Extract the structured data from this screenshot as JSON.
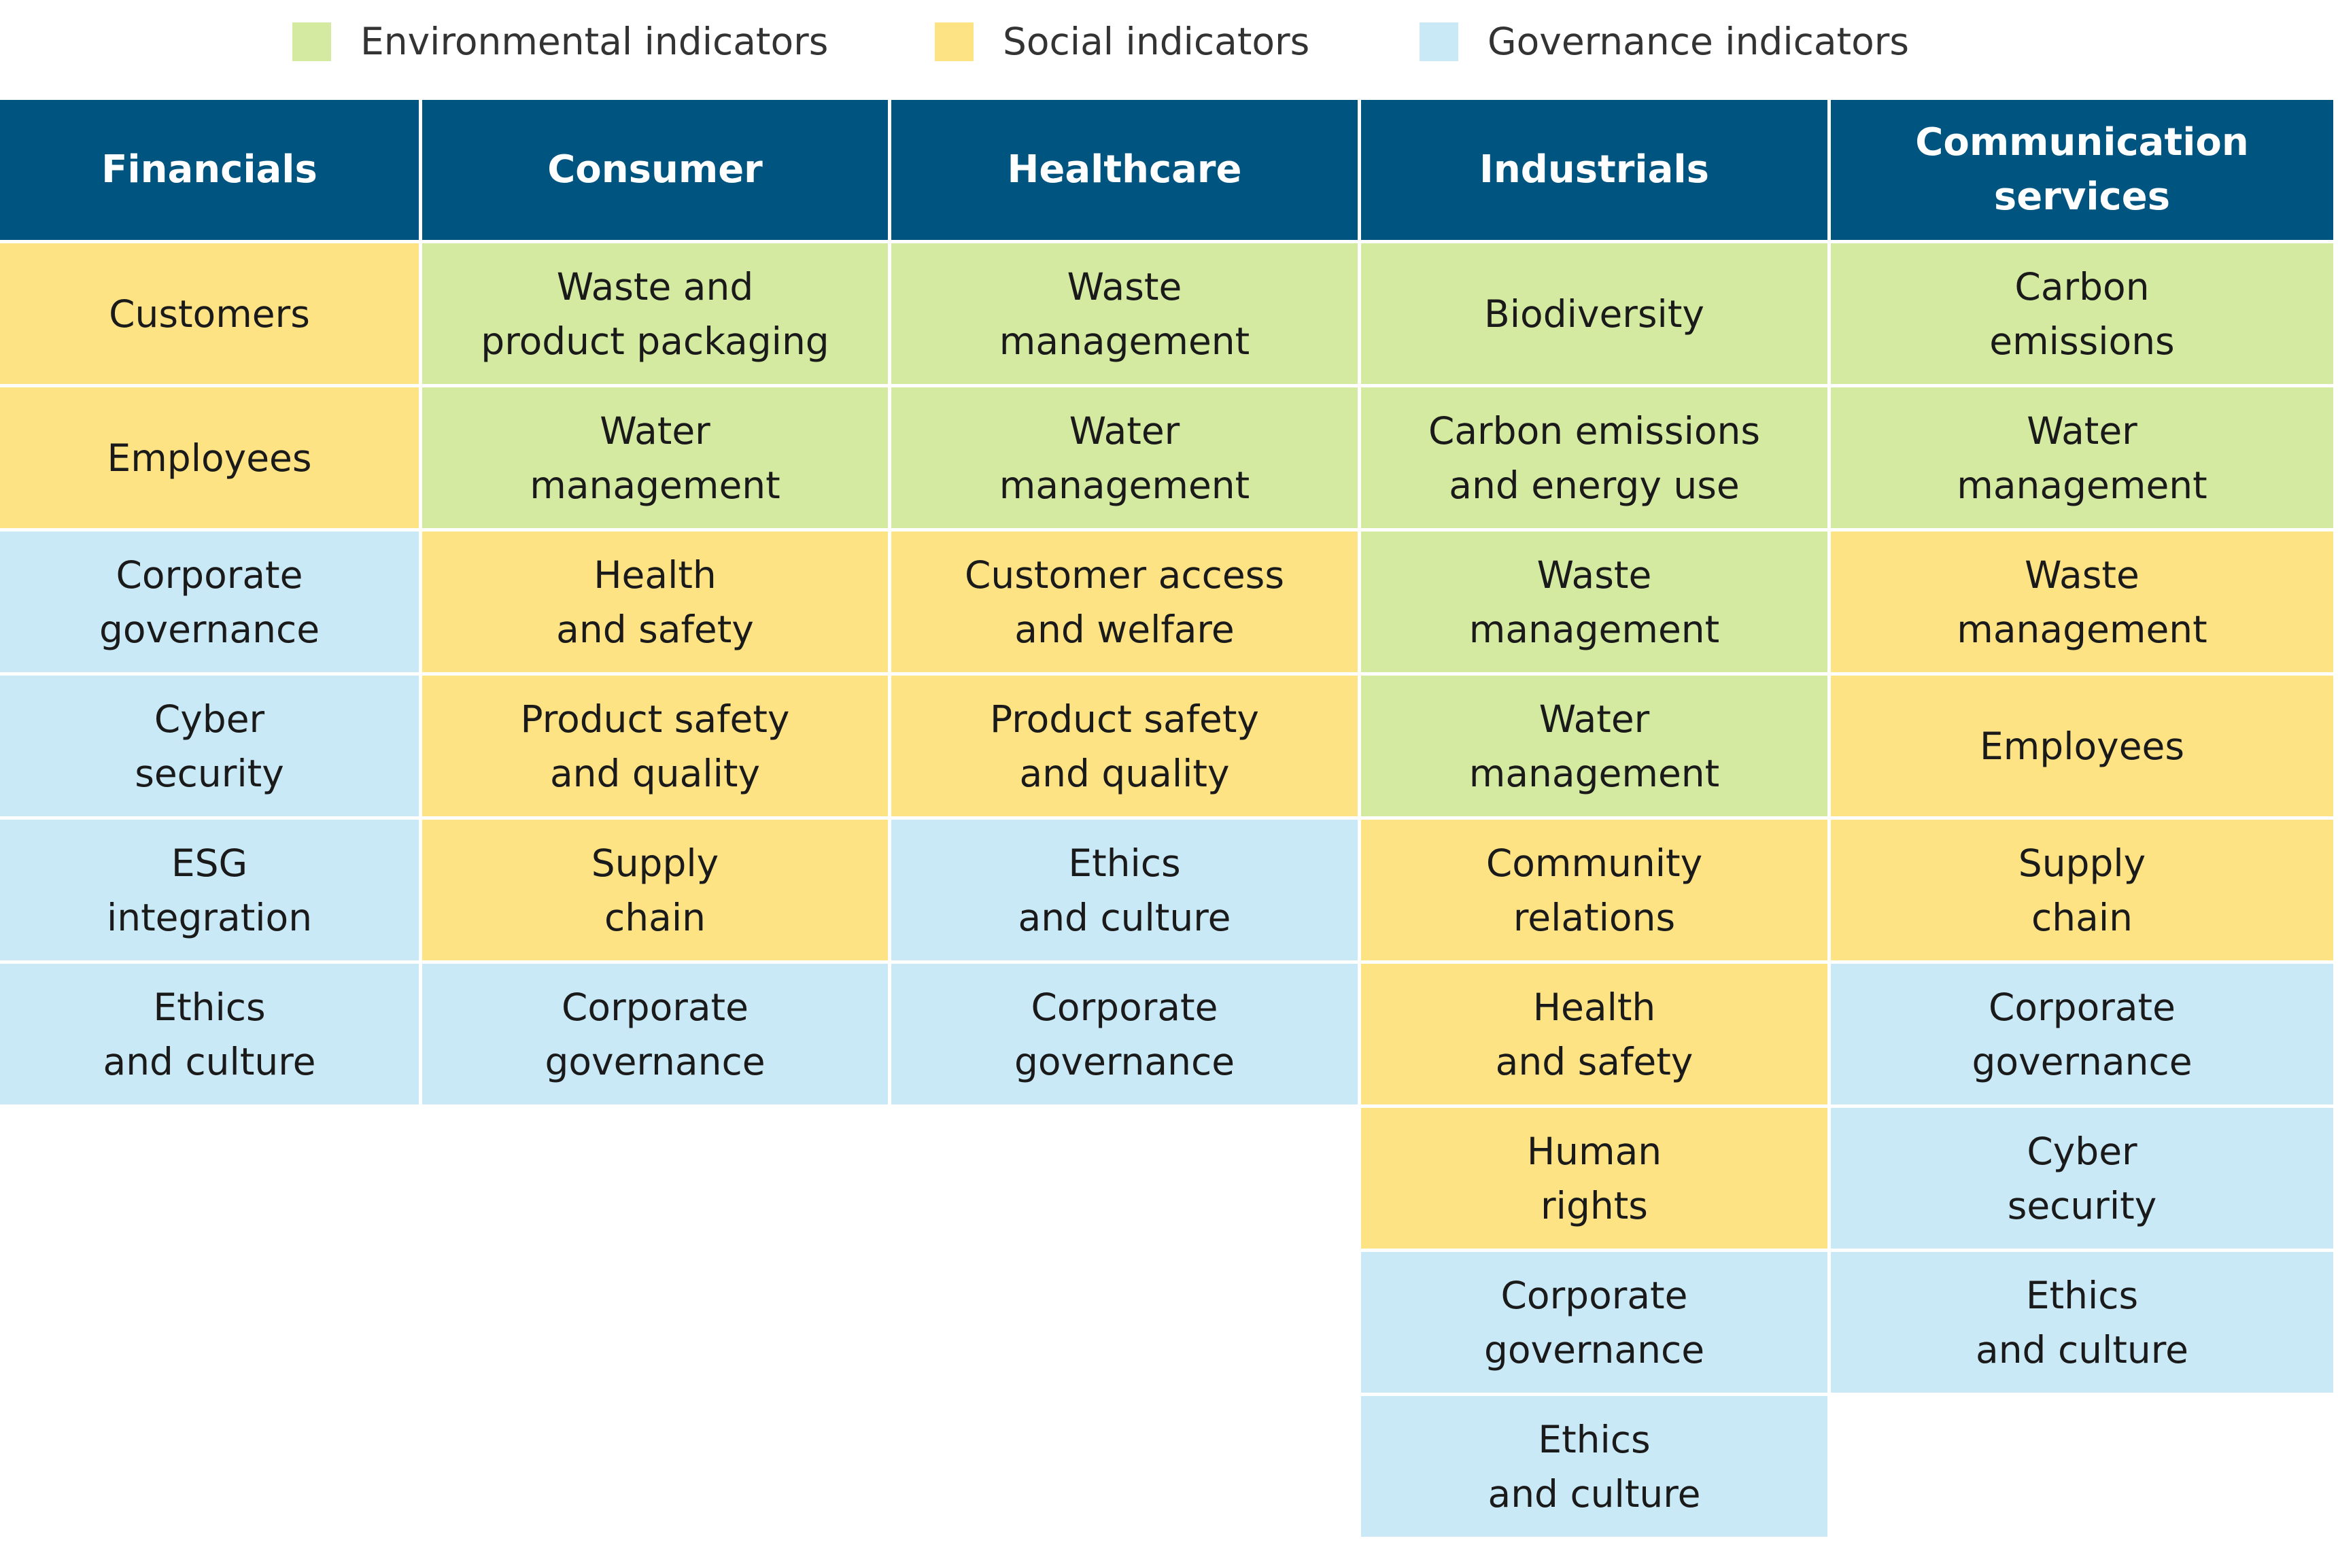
{
  "legend": [
    {
      "label": "Environmental indicators",
      "color": "#d4eaa0"
    },
    {
      "label": "Social indicators",
      "color": "#fde384"
    },
    {
      "label": "Governance indicators",
      "color": "#c9e9f6"
    }
  ],
  "header_color": "#005580",
  "columns": [
    {
      "header": "Financials",
      "cells": [
        {
          "text": "Customers",
          "color": "#fde384"
        },
        {
          "text": "Employees",
          "color": "#fde384"
        },
        {
          "text": "Corporate\ngovernance",
          "color": "#c9e9f6"
        },
        {
          "text": "Cyber\nsecurity",
          "color": "#c9e9f6"
        },
        {
          "text": "ESG\nintegration",
          "color": "#c9e9f6"
        },
        {
          "text": "Ethics\nand culture",
          "color": "#c9e9f6"
        }
      ]
    },
    {
      "header": "Consumer",
      "cells": [
        {
          "text": "Waste and\nproduct packaging",
          "color": "#d4eaa0"
        },
        {
          "text": "Water\nmanagement",
          "color": "#d4eaa0"
        },
        {
          "text": "Health\nand safety",
          "color": "#fde384"
        },
        {
          "text": "Product safety\nand quality",
          "color": "#fde384"
        },
        {
          "text": "Supply\nchain",
          "color": "#fde384"
        },
        {
          "text": "Corporate\ngovernance",
          "color": "#c9e9f6"
        }
      ]
    },
    {
      "header": "Healthcare",
      "cells": [
        {
          "text": "Waste\nmanagement",
          "color": "#d4eaa0"
        },
        {
          "text": "Water\nmanagement",
          "color": "#d4eaa0"
        },
        {
          "text": "Customer access\nand welfare",
          "color": "#fde384"
        },
        {
          "text": "Product safety\nand quality",
          "color": "#fde384"
        },
        {
          "text": "Ethics\nand culture",
          "color": "#c9e9f6"
        },
        {
          "text": "Corporate\ngovernance",
          "color": "#c9e9f6"
        }
      ]
    },
    {
      "header": "Industrials",
      "cells": [
        {
          "text": "Biodiversity",
          "color": "#d4eaa0"
        },
        {
          "text": "Carbon emissions\nand energy use",
          "color": "#d4eaa0"
        },
        {
          "text": "Waste\nmanagement",
          "color": "#d4eaa0"
        },
        {
          "text": "Water\nmanagement",
          "color": "#d4eaa0"
        },
        {
          "text": "Community\nrelations",
          "color": "#fde384"
        },
        {
          "text": "Health\nand safety",
          "color": "#fde384"
        },
        {
          "text": "Human\nrights",
          "color": "#fde384"
        },
        {
          "text": "Corporate\ngovernance",
          "color": "#c9e9f6"
        },
        {
          "text": "Ethics\nand culture",
          "color": "#c9e9f6"
        }
      ]
    },
    {
      "header": "Communication\nservices",
      "cells": [
        {
          "text": "Carbon\nemissions",
          "color": "#d4eaa0"
        },
        {
          "text": "Water\nmanagement",
          "color": "#d4eaa0"
        },
        {
          "text": "Waste\nmanagement",
          "color": "#fde384"
        },
        {
          "text": "Employees",
          "color": "#fde384"
        },
        {
          "text": "Supply\nchain",
          "color": "#fde384"
        },
        {
          "text": "Corporate\ngovernance",
          "color": "#c9e9f6"
        },
        {
          "text": "Cyber\nsecurity",
          "color": "#c9e9f6"
        },
        {
          "text": "Ethics\nand culture",
          "color": "#c9e9f6"
        }
      ]
    }
  ]
}
